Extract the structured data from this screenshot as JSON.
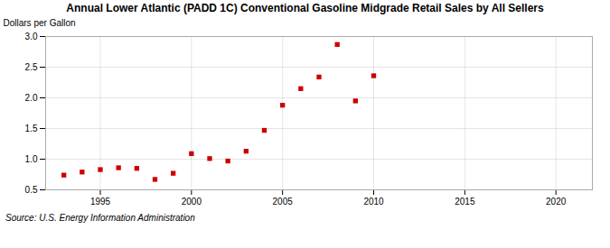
{
  "chart_data": {
    "type": "scatter",
    "title": "Annual Lower Atlantic (PADD 1C) Conventional Gasoline Midgrade Retail Sales by All Sellers",
    "ylabel": "Dollars per Gallon",
    "caption": "Source: U.S. Energy Information Administration",
    "x": [
      1993,
      1994,
      1995,
      1996,
      1997,
      1998,
      1999,
      2000,
      2001,
      2002,
      2003,
      2004,
      2005,
      2006,
      2007,
      2008,
      2009,
      2010
    ],
    "values": [
      0.74,
      0.79,
      0.83,
      0.86,
      0.85,
      0.67,
      0.77,
      1.09,
      1.01,
      0.97,
      1.13,
      1.47,
      1.88,
      2.15,
      2.34,
      2.87,
      1.95,
      2.36
    ],
    "color": "#cc0000",
    "marker": "square",
    "xlim": [
      1992,
      2022
    ],
    "xticks": [
      1995,
      2000,
      2005,
      2010,
      2015,
      2020
    ],
    "ylim": [
      0.5,
      3.0
    ],
    "yticks": [
      0.5,
      {
        "value": 1,
        "label": "1.0"
      },
      1.5,
      {
        "value": 2,
        "label": "2.0"
      },
      2.5,
      {
        "value": 3,
        "label": "3.0"
      }
    ],
    "grid": true
  }
}
